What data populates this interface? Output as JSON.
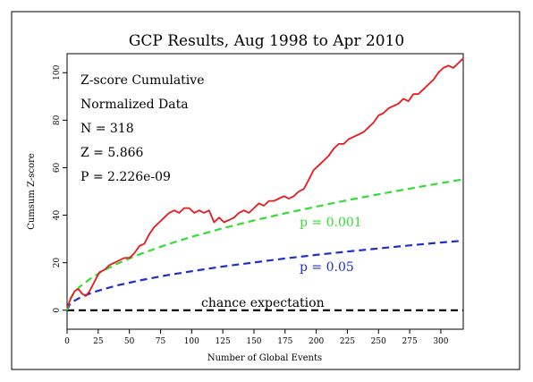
{
  "chart_data": {
    "type": "line",
    "title": "GCP Results, Aug 1998 to Apr 2010",
    "xlabel": "Number of Global Events",
    "ylabel": "Cumsum Z-score",
    "xlim": [
      0,
      318
    ],
    "ylim": [
      -8,
      108
    ],
    "x_ticks": [
      0,
      25,
      50,
      75,
      100,
      125,
      150,
      175,
      200,
      225,
      250,
      275,
      300
    ],
    "y_ticks": [
      0,
      20,
      40,
      60,
      80,
      100
    ],
    "grid": false,
    "stats_box": {
      "line1": "Z-score Cumulative",
      "line2": "Normalized Data",
      "line3": "N = 318",
      "line4": "Z = 5.866",
      "line5": "P = 2.226e-09"
    },
    "series": [
      {
        "color": "#e8191c",
        "style": "solid",
        "x": [
          0,
          3,
          6,
          9,
          12,
          15,
          18,
          20,
          23,
          26,
          30,
          34,
          38,
          42,
          46,
          50,
          54,
          58,
          62,
          66,
          70,
          74,
          78,
          82,
          86,
          90,
          94,
          98,
          102,
          106,
          110,
          114,
          118,
          122,
          126,
          130,
          134,
          138,
          142,
          146,
          150,
          154,
          158,
          162,
          166,
          170,
          174,
          178,
          182,
          186,
          190,
          194,
          198,
          202,
          206,
          210,
          214,
          218,
          222,
          226,
          230,
          234,
          238,
          242,
          246,
          250,
          254,
          258,
          262,
          266,
          270,
          274,
          278,
          282,
          286,
          290,
          294,
          298,
          302,
          306,
          310,
          314,
          318
        ],
        "y": [
          1,
          5,
          8,
          9,
          7,
          6,
          8,
          10,
          13,
          16,
          17,
          19,
          20,
          21,
          22,
          22,
          24,
          27,
          28,
          32,
          35,
          37,
          39,
          41,
          42,
          41,
          43,
          43,
          41,
          42,
          41,
          42,
          37,
          39,
          37,
          38,
          39,
          41,
          42,
          41,
          43,
          45,
          44,
          46,
          46,
          47,
          48,
          47,
          48,
          50,
          51,
          55,
          59,
          61,
          63,
          65,
          68,
          70,
          70,
          72,
          73,
          74,
          75,
          77,
          79,
          82,
          83,
          85,
          86,
          87,
          89,
          88,
          91,
          91,
          93,
          95,
          97,
          100,
          102,
          103,
          102,
          104,
          106
        ]
      },
      {
        "name": "p = 0.001",
        "color": "#33dd33",
        "style": "dashed",
        "x": [
          0,
          2,
          5,
          10,
          20,
          30,
          40,
          50,
          60,
          80,
          100,
          125,
          150,
          175,
          200,
          225,
          250,
          275,
          300,
          318
        ],
        "y": [
          0,
          4.4,
          6.9,
          9.8,
          13.8,
          16.9,
          19.5,
          21.8,
          23.9,
          27.6,
          30.9,
          34.5,
          37.8,
          40.8,
          43.6,
          46.3,
          48.8,
          51.2,
          53.5,
          55.1
        ]
      },
      {
        "name": "p = 0.05",
        "color": "#1f2fcc",
        "style": "dashed",
        "x": [
          0,
          2,
          5,
          10,
          20,
          30,
          40,
          50,
          60,
          80,
          100,
          125,
          150,
          175,
          200,
          225,
          250,
          275,
          300,
          318
        ],
        "y": [
          0,
          2.3,
          3.7,
          5.2,
          7.4,
          9.0,
          10.4,
          11.6,
          12.7,
          14.7,
          16.4,
          18.4,
          20.1,
          21.8,
          23.3,
          24.7,
          26.0,
          27.3,
          28.5,
          29.3
        ]
      },
      {
        "name": "chance expectation",
        "color": "#000000",
        "style": "dashed",
        "x": [
          0,
          318
        ],
        "y": [
          0,
          0
        ]
      }
    ]
  }
}
